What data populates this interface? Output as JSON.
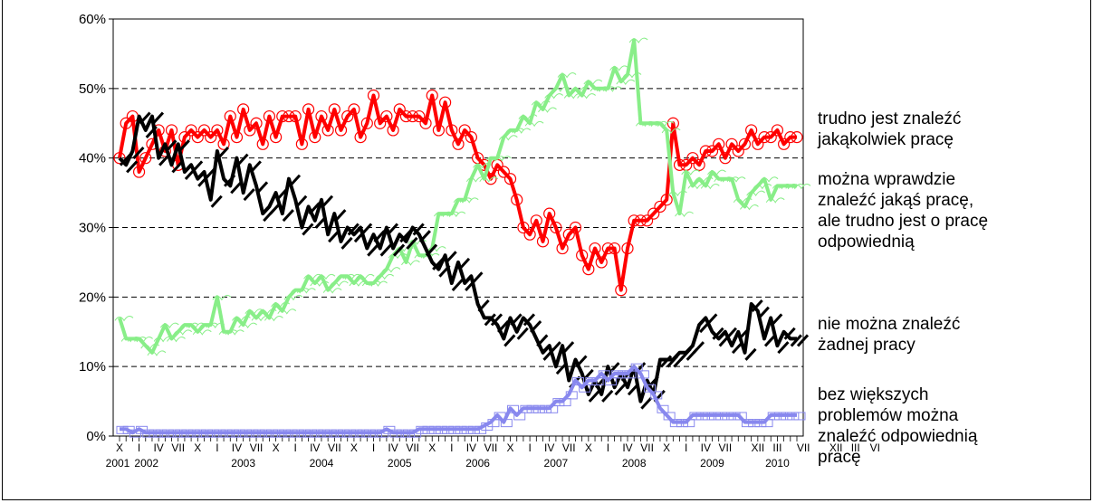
{
  "chart_data": {
    "type": "line",
    "y_ticks": [
      "0%",
      "10%",
      "20%",
      "30%",
      "40%",
      "50%",
      "60%"
    ],
    "ylim": [
      0,
      60
    ],
    "grid": "horizontal dashed",
    "x_ticks": [
      "X",
      "I",
      "IV",
      "VII",
      "X",
      "I",
      "IV",
      "VII",
      "X",
      "I",
      "IV",
      "VII",
      "X",
      "I",
      "IV",
      "VII",
      "X",
      "I",
      "IV",
      "VII",
      "X",
      "I",
      "IV",
      "VII",
      "X",
      "I",
      "IV",
      "VII",
      "X",
      "I",
      "IV",
      "VII",
      "XII",
      "III",
      "VII",
      "XII",
      "III",
      "VI"
    ],
    "year_labels": [
      "2001",
      "2002",
      "2003",
      "2004",
      "2005",
      "2006",
      "2007",
      "2008",
      "2009",
      "2010"
    ],
    "x_range": [
      "2001-10",
      "2010-06"
    ],
    "series": [
      {
        "name": "trudno jest znaleźć jakąkolwiek pracę",
        "color": "#ff0000",
        "x": [
          "2001-10",
          "2001-11",
          "2001-12",
          "2002-01",
          "2002-02",
          "2002-03",
          "2002-04",
          "2002-05",
          "2002-06",
          "2002-07",
          "2002-08",
          "2002-09",
          "2002-10",
          "2002-11",
          "2002-12",
          "2003-01",
          "2003-02",
          "2003-03",
          "2003-04",
          "2003-05",
          "2003-06",
          "2003-07",
          "2003-08",
          "2003-09",
          "2003-10",
          "2003-11",
          "2003-12",
          "2004-01",
          "2004-02",
          "2004-03",
          "2004-04",
          "2004-05",
          "2004-06",
          "2004-07",
          "2004-08",
          "2004-09",
          "2004-10",
          "2004-11",
          "2004-12",
          "2005-01",
          "2005-02",
          "2005-03",
          "2005-04",
          "2005-05",
          "2005-06",
          "2005-07",
          "2005-08",
          "2005-09",
          "2005-10",
          "2005-11",
          "2005-12",
          "2006-01",
          "2006-02",
          "2006-03",
          "2006-04",
          "2006-05",
          "2006-06",
          "2006-07",
          "2006-08",
          "2006-09",
          "2006-10",
          "2006-11",
          "2006-12",
          "2007-01",
          "2007-02",
          "2007-03",
          "2007-04",
          "2007-05",
          "2007-06",
          "2007-07",
          "2007-08",
          "2007-09",
          "2007-10",
          "2007-11",
          "2007-12",
          "2008-01",
          "2008-02",
          "2008-03",
          "2008-04",
          "2008-05",
          "2008-06",
          "2008-07",
          "2008-08",
          "2008-09",
          "2008-10",
          "2008-11",
          "2008-12",
          "2009-01",
          "2009-02",
          "2009-03",
          "2009-04",
          "2009-05",
          "2009-06",
          "2009-07",
          "2009-08",
          "2009-09",
          "2009-10",
          "2009-11",
          "2009-12",
          "2010-01",
          "2010-02",
          "2010-03",
          "2010-04",
          "2010-05",
          "2010-06"
        ],
        "values": [
          40,
          45,
          46,
          38,
          40,
          42,
          44,
          41,
          44,
          39,
          43,
          44,
          43,
          44,
          43,
          44,
          42,
          46,
          43,
          47,
          44,
          45,
          42,
          46,
          43,
          46,
          46,
          46,
          42,
          47,
          43,
          46,
          44,
          47,
          44,
          46,
          47,
          43,
          45,
          49,
          45,
          46,
          44,
          47,
          46,
          46,
          46,
          45,
          49,
          44,
          48,
          44,
          42,
          44,
          43,
          40,
          39,
          37,
          39,
          38,
          37,
          34,
          30,
          29,
          31,
          28,
          32,
          30,
          27,
          29,
          30,
          26,
          24,
          27,
          25,
          27,
          27,
          21,
          27,
          31,
          31,
          31,
          32,
          33,
          34,
          45,
          39,
          39,
          40,
          39,
          41,
          41,
          42,
          40,
          42,
          41,
          42,
          44,
          42,
          43,
          43,
          44,
          42,
          43,
          43
        ]
      },
      {
        "name": "można wprawdzie znaleźć jakąś pracę, ale trudno jest o pracę odpowiednią",
        "color": "#88ee88",
        "x": [
          "2001-10",
          "2001-11",
          "2001-12",
          "2002-01",
          "2002-02",
          "2002-03",
          "2002-04",
          "2002-05",
          "2002-06",
          "2002-07",
          "2002-08",
          "2002-09",
          "2002-10",
          "2002-11",
          "2002-12",
          "2003-01",
          "2003-02",
          "2003-03",
          "2003-04",
          "2003-05",
          "2003-06",
          "2003-07",
          "2003-08",
          "2003-09",
          "2003-10",
          "2003-11",
          "2003-12",
          "2004-01",
          "2004-02",
          "2004-03",
          "2004-04",
          "2004-05",
          "2004-06",
          "2004-07",
          "2004-08",
          "2004-09",
          "2004-10",
          "2004-11",
          "2004-12",
          "2005-01",
          "2005-02",
          "2005-03",
          "2005-04",
          "2005-05",
          "2005-06",
          "2005-07",
          "2005-08",
          "2005-09",
          "2005-10",
          "2005-11",
          "2005-12",
          "2006-01",
          "2006-02",
          "2006-03",
          "2006-04",
          "2006-05",
          "2006-06",
          "2006-07",
          "2006-08",
          "2006-09",
          "2006-10",
          "2006-11",
          "2006-12",
          "2007-01",
          "2007-02",
          "2007-03",
          "2007-04",
          "2007-05",
          "2007-06",
          "2007-07",
          "2007-08",
          "2007-09",
          "2007-10",
          "2007-11",
          "2007-12",
          "2008-01",
          "2008-02",
          "2008-03",
          "2008-04",
          "2008-05",
          "2008-06",
          "2008-07",
          "2008-08",
          "2008-09",
          "2008-10",
          "2008-11",
          "2008-12",
          "2009-01",
          "2009-02",
          "2009-03",
          "2009-04",
          "2009-05",
          "2009-06",
          "2009-07",
          "2009-08",
          "2009-09",
          "2009-10",
          "2009-11",
          "2009-12",
          "2010-01",
          "2010-02",
          "2010-03",
          "2010-04",
          "2010-05",
          "2010-06"
        ],
        "values": [
          17,
          14,
          14,
          14,
          13,
          12,
          14,
          16,
          14,
          15,
          16,
          16,
          15,
          16,
          16,
          20,
          15,
          15,
          17,
          16,
          18,
          17,
          18,
          17,
          19,
          18,
          20,
          21,
          21,
          23,
          22,
          23,
          21,
          22,
          23,
          23,
          22,
          23,
          22,
          22,
          23,
          24,
          26,
          27,
          25,
          28,
          26,
          26,
          27,
          32,
          32,
          32,
          34,
          34,
          37,
          39,
          37,
          40,
          40,
          43,
          44,
          44,
          46,
          45,
          48,
          47,
          49,
          50,
          52,
          49,
          50,
          49,
          51,
          50,
          50,
          50,
          53,
          51,
          52,
          57,
          45,
          45,
          45,
          45,
          44,
          35,
          32,
          38,
          36,
          37,
          36,
          38,
          37,
          37,
          37,
          34,
          33,
          35,
          36,
          37,
          34,
          36,
          36,
          36,
          36
        ]
      },
      {
        "name": "nie można znaleźć żadnej pracy",
        "color": "#000000",
        "x": [
          "2001-10",
          "2001-11",
          "2001-12",
          "2002-01",
          "2002-02",
          "2002-03",
          "2002-04",
          "2002-05",
          "2002-06",
          "2002-07",
          "2002-08",
          "2002-09",
          "2002-10",
          "2002-11",
          "2002-12",
          "2003-01",
          "2003-02",
          "2003-03",
          "2003-04",
          "2003-05",
          "2003-06",
          "2003-07",
          "2003-08",
          "2003-09",
          "2003-10",
          "2003-11",
          "2003-12",
          "2004-01",
          "2004-02",
          "2004-03",
          "2004-04",
          "2004-05",
          "2004-06",
          "2004-07",
          "2004-08",
          "2004-09",
          "2004-10",
          "2004-11",
          "2004-12",
          "2005-01",
          "2005-02",
          "2005-03",
          "2005-04",
          "2005-05",
          "2005-06",
          "2005-07",
          "2005-08",
          "2005-09",
          "2005-10",
          "2005-11",
          "2005-12",
          "2006-01",
          "2006-02",
          "2006-03",
          "2006-04",
          "2006-05",
          "2006-06",
          "2006-07",
          "2006-08",
          "2006-09",
          "2006-10",
          "2006-11",
          "2006-12",
          "2007-01",
          "2007-02",
          "2007-03",
          "2007-04",
          "2007-05",
          "2007-06",
          "2007-07",
          "2007-08",
          "2007-09",
          "2007-10",
          "2007-11",
          "2007-12",
          "2008-01",
          "2008-02",
          "2008-03",
          "2008-04",
          "2008-05",
          "2008-06",
          "2008-07",
          "2008-08",
          "2008-09",
          "2008-10",
          "2008-11",
          "2008-12",
          "2009-01",
          "2009-02",
          "2009-03",
          "2009-04",
          "2009-05",
          "2009-06",
          "2009-07",
          "2009-08",
          "2009-09",
          "2009-10",
          "2009-11",
          "2009-12",
          "2010-01",
          "2010-02",
          "2010-03",
          "2010-04",
          "2010-05",
          "2010-06"
        ],
        "values": [
          40,
          39,
          41,
          46,
          44,
          46,
          40,
          42,
          39,
          42,
          38,
          39,
          37,
          38,
          34,
          41,
          37,
          36,
          40,
          35,
          39,
          36,
          32,
          33,
          35,
          32,
          37,
          34,
          30,
          33,
          31,
          34,
          29,
          32,
          28,
          30,
          29,
          30,
          27,
          29,
          27,
          30,
          27,
          29,
          28,
          30,
          29,
          27,
          25,
          24,
          26,
          22,
          25,
          22,
          23,
          19,
          17,
          17,
          16,
          14,
          17,
          15,
          17,
          16,
          14,
          12,
          13,
          10,
          13,
          8,
          11,
          9,
          6,
          8,
          6,
          10,
          7,
          9,
          7,
          10,
          5,
          8,
          6,
          11,
          11,
          11,
          12,
          12,
          13,
          16,
          17,
          15,
          14,
          15,
          13,
          15,
          12,
          19,
          18,
          14,
          17,
          13,
          15,
          14,
          14
        ]
      },
      {
        "name": "bez większych problemów można znaleźć odpowiednią pracę",
        "color": "#8888ee",
        "x": [
          "2001-10",
          "2001-11",
          "2001-12",
          "2002-01",
          "2002-02",
          "2002-03",
          "2002-04",
          "2002-05",
          "2002-06",
          "2002-07",
          "2002-08",
          "2002-09",
          "2002-10",
          "2002-11",
          "2002-12",
          "2003-01",
          "2003-02",
          "2003-03",
          "2003-04",
          "2003-05",
          "2003-06",
          "2003-07",
          "2003-08",
          "2003-09",
          "2003-10",
          "2003-11",
          "2003-12",
          "2004-01",
          "2004-02",
          "2004-03",
          "2004-04",
          "2004-05",
          "2004-06",
          "2004-07",
          "2004-08",
          "2004-09",
          "2004-10",
          "2004-11",
          "2004-12",
          "2005-01",
          "2005-02",
          "2005-03",
          "2005-04",
          "2005-05",
          "2005-06",
          "2005-07",
          "2005-08",
          "2005-09",
          "2005-10",
          "2005-11",
          "2005-12",
          "2006-01",
          "2006-02",
          "2006-03",
          "2006-04",
          "2006-05",
          "2006-06",
          "2006-07",
          "2006-08",
          "2006-09",
          "2006-10",
          "2006-11",
          "2006-12",
          "2007-01",
          "2007-02",
          "2007-03",
          "2007-04",
          "2007-05",
          "2007-06",
          "2007-07",
          "2007-08",
          "2007-09",
          "2007-10",
          "2007-11",
          "2007-12",
          "2008-01",
          "2008-02",
          "2008-03",
          "2008-04",
          "2008-05",
          "2008-06",
          "2008-07",
          "2008-08",
          "2008-09",
          "2008-10",
          "2008-11",
          "2008-12",
          "2009-01",
          "2009-02",
          "2009-03",
          "2009-04",
          "2009-05",
          "2009-06",
          "2009-07",
          "2009-08",
          "2009-09",
          "2009-10",
          "2009-11",
          "2009-12",
          "2010-01",
          "2010-02",
          "2010-03",
          "2010-04",
          "2010-05",
          "2010-06"
        ],
        "values": [
          1,
          1,
          0.5,
          1,
          0.5,
          0.5,
          0.5,
          0.5,
          0.5,
          0.5,
          0.5,
          0.5,
          0.5,
          0.5,
          0.5,
          0.5,
          0.5,
          0.5,
          0.5,
          0.5,
          0.5,
          0.5,
          0.5,
          0.5,
          0.5,
          0.5,
          0.5,
          0.5,
          0.5,
          0.5,
          0.5,
          0.5,
          0.5,
          0.5,
          0.5,
          0.5,
          0.5,
          0.5,
          0.5,
          0.5,
          0.5,
          1,
          0.5,
          0.5,
          0.5,
          0.5,
          1,
          1,
          1,
          1,
          1,
          1,
          1,
          1,
          1,
          1,
          1.5,
          2,
          3,
          2,
          4,
          3,
          4,
          4,
          4,
          4,
          4,
          5,
          5,
          6,
          8,
          7,
          8,
          8,
          9,
          8,
          9,
          9,
          9,
          10,
          9,
          7,
          6,
          4,
          3,
          2,
          2,
          2,
          3,
          3,
          3,
          3,
          3,
          3,
          3,
          3,
          2,
          2,
          2,
          2,
          3,
          3,
          3,
          3,
          3
        ]
      }
    ]
  },
  "legend_labels": {
    "trudno": [
      "trudno jest znaleźć",
      "jakąkolwiek pracę"
    ],
    "mozna_wprawdzie": [
      "można wprawdzie",
      "znaleźć jakąś pracę,",
      "ale trudno jest o pracę",
      "odpowiednią"
    ],
    "nie_mozna": [
      "nie można znaleźć",
      "żadnej pracy"
    ],
    "bez_wiekszych": [
      "bez większych",
      "problemów można",
      "znaleźć odpowiednią",
      "pracę"
    ]
  }
}
